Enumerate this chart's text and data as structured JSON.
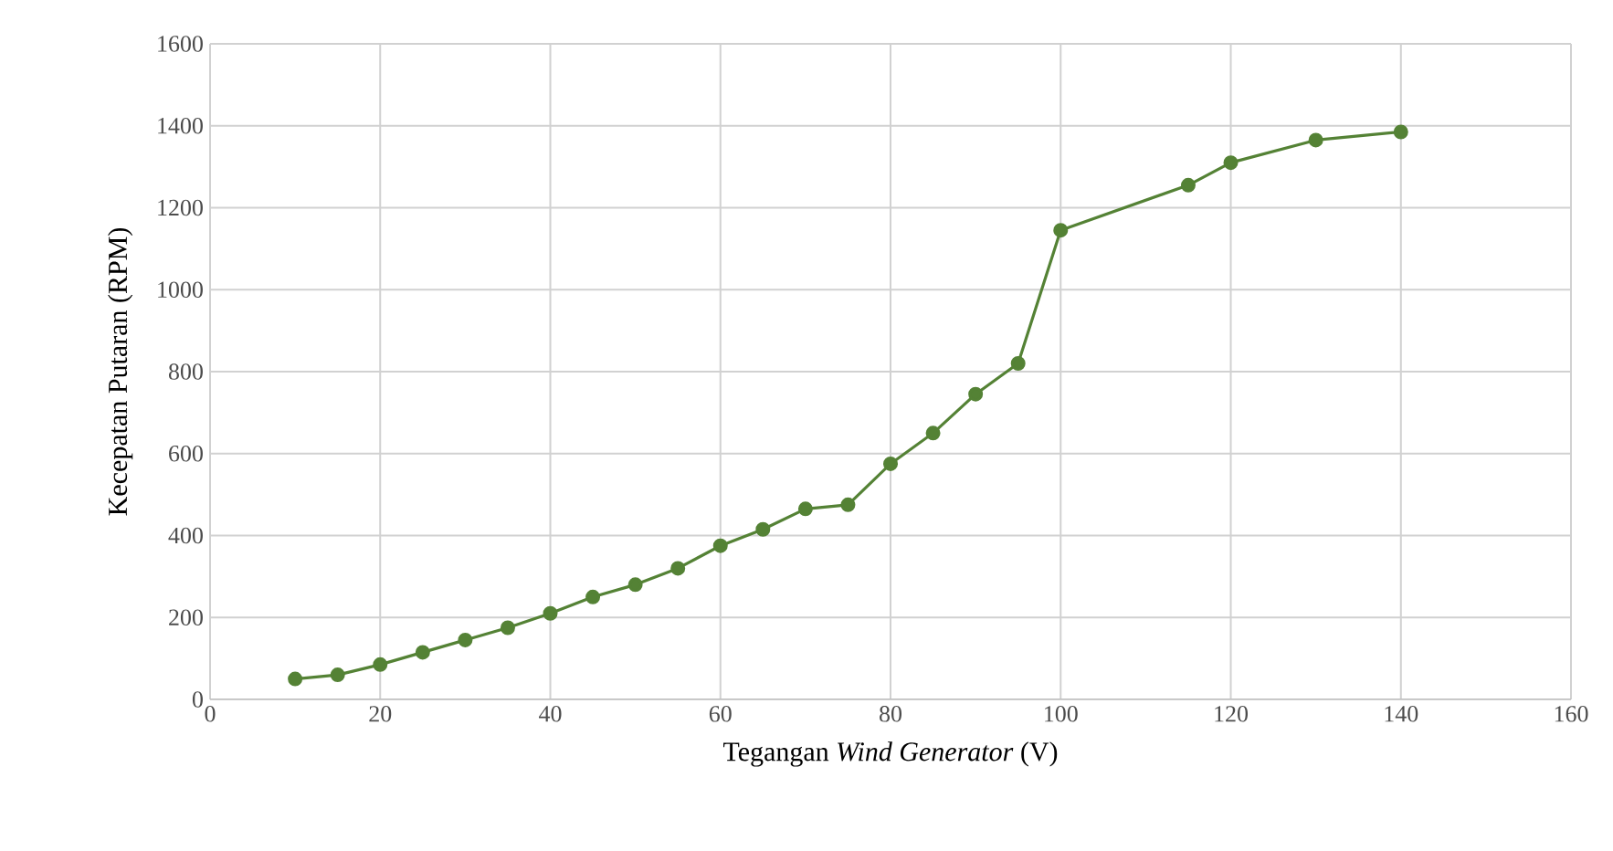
{
  "chart_data": {
    "type": "line",
    "xlabel": "Tegangan *Wind Generator* (V)",
    "ylabel": "Kecepatan Putaran (RPM)",
    "x": [
      10,
      15,
      20,
      25,
      30,
      35,
      40,
      45,
      50,
      55,
      60,
      65,
      70,
      75,
      80,
      85,
      90,
      95,
      100,
      115,
      120,
      130,
      140
    ],
    "series": [
      {
        "color": "#548235",
        "values": [
          50,
          60,
          85,
          115,
          145,
          175,
          210,
          250,
          280,
          320,
          375,
          415,
          465,
          475,
          575,
          650,
          745,
          820,
          1145,
          1255,
          1310,
          1365,
          1385
        ]
      }
    ],
    "xlim": [
      0,
      160
    ],
    "xticks": [
      0,
      20,
      40,
      60,
      80,
      100,
      120,
      140,
      160
    ],
    "ylim": [
      0,
      1600
    ],
    "yticks": [
      0,
      200,
      400,
      600,
      800,
      1000,
      1200,
      1400,
      1600
    ],
    "grid": true,
    "marker": "circle",
    "line_style": "solid"
  }
}
